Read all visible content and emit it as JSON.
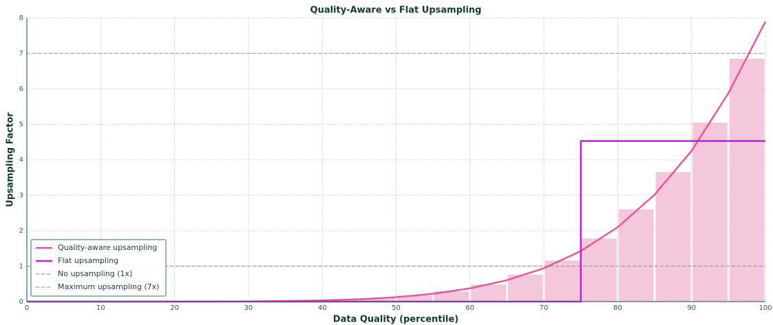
{
  "chart_data": {
    "type": "histogram",
    "title": "Quality-Aware vs Flat Upsampling",
    "x_label": "Data Quality (percentile)",
    "y_label": "Upsampling Factor",
    "bins": [
      0,
      5,
      10,
      15,
      20,
      25,
      30,
      35,
      40,
      45,
      50,
      55,
      60,
      65,
      70,
      75,
      80,
      85,
      90,
      95,
      100
    ],
    "values": [
      0,
      0,
      0,
      0,
      0.001,
      0.003,
      0.01,
      0.02,
      0.05,
      0.09,
      0.17,
      0.29,
      0.48,
      0.76,
      1.16,
      1.78,
      2.6,
      3.65,
      5.05,
      6.85
    ],
    "color": "#f4c7dc",
    "series": [
      {
        "name": "Quality-aware upsampling",
        "color": "#e8559a",
        "x": [
          0,
          5,
          10,
          15,
          20,
          25,
          30,
          35,
          40,
          45,
          50,
          55,
          60,
          65,
          70,
          75,
          80,
          85,
          90,
          95,
          100
        ],
        "values": [
          0,
          0,
          0,
          0.0001,
          0.0005,
          0.002,
          0.006,
          0.015,
          0.033,
          0.066,
          0.125,
          0.22,
          0.373,
          0.603,
          0.941,
          1.424,
          2.097,
          3.017,
          4.251,
          5.88,
          7.9
        ]
      },
      {
        "name": "Flat upsampling",
        "color": "#c020d8",
        "x": [
          0,
          75,
          75,
          100
        ],
        "values": [
          0,
          0,
          4.53,
          4.53
        ]
      }
    ],
    "reference_lines": [
      {
        "name": "No upsampling (1x)",
        "color": "#999999",
        "value": 1
      },
      {
        "name": "Maximum upsampling (7x)",
        "color": "#ee7fab",
        "value": 7
      }
    ],
    "xlim": [
      0,
      100
    ],
    "xticks": [
      0,
      10,
      20,
      30,
      40,
      50,
      60,
      70,
      80,
      90,
      100
    ],
    "ylim": [
      0,
      8
    ],
    "yticks": [
      0,
      1,
      2,
      3,
      4,
      5,
      6,
      7,
      8
    ],
    "grid": true,
    "legend": "lower left"
  }
}
